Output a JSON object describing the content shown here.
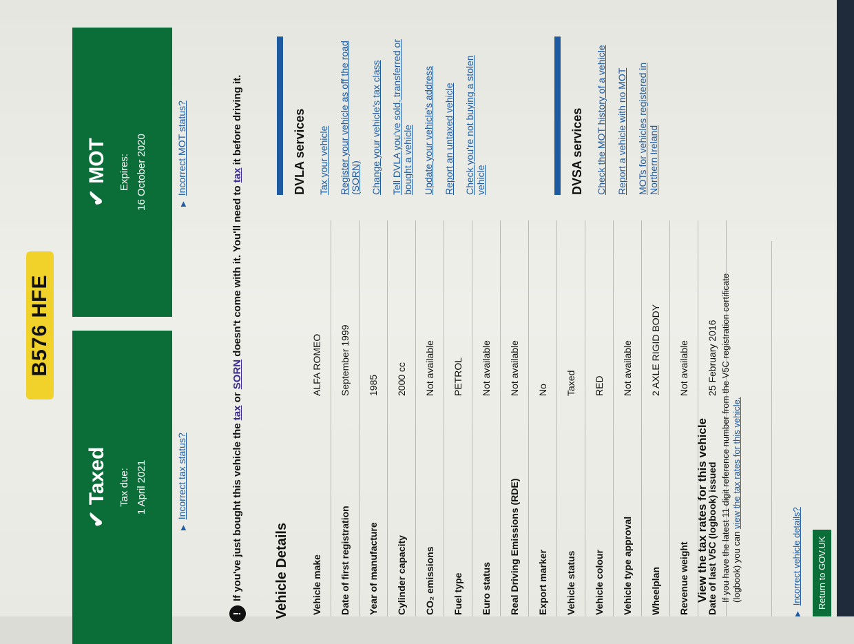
{
  "registration": "B576 HFE",
  "tax": {
    "status": "Taxed",
    "label": "Tax due:",
    "date": "1 April 2021",
    "incorrect_link": "Incorrect tax status?"
  },
  "mot": {
    "status": "MOT",
    "label": "Expires:",
    "date": "16 October 2020",
    "incorrect_link": "Incorrect MOT status?"
  },
  "warning": {
    "pre": "If you've just bought this vehicle the ",
    "tax": "tax",
    "or": " or ",
    "sorn": "SORN",
    "mid": " doesn't come with it. You'll need to ",
    "tax2": "tax",
    "post": " it before driving it."
  },
  "details": {
    "title": "Vehicle Details",
    "rows": [
      {
        "label": "Vehicle make",
        "value": "ALFA ROMEO"
      },
      {
        "label": "Date of first registration",
        "value": "September 1999"
      },
      {
        "label": "Year of manufacture",
        "value": "1985"
      },
      {
        "label": "Cylinder capacity",
        "value": "2000 cc"
      },
      {
        "label": "CO₂ emissions",
        "value": "Not available"
      },
      {
        "label": "Fuel type",
        "value": "PETROL"
      },
      {
        "label": "Euro status",
        "value": "Not available"
      },
      {
        "label": "Real Driving Emissions (RDE)",
        "value": "Not available"
      },
      {
        "label": "Export marker",
        "value": "No"
      },
      {
        "label": "Vehicle status",
        "value": "Taxed"
      },
      {
        "label": "Vehicle colour",
        "value": "RED"
      },
      {
        "label": "Vehicle type approval",
        "value": "Not available"
      },
      {
        "label": "Wheelplan",
        "value": "2 AXLE RIGID BODY"
      },
      {
        "label": "Revenue weight",
        "value": "Not available"
      },
      {
        "label": "Date of last V5C (logbook) issued",
        "value": "25 February 2016"
      }
    ]
  },
  "tax_rates": {
    "title": "View the tax rates for this vehicle",
    "text": "If you have the latest 11 digit reference number from the V5C registration certificate (logbook) you can ",
    "link": "view the tax rates for this vehicle."
  },
  "incorrect_details_link": "Incorrect vehicle details?",
  "return_button": "Return to GOV.UK",
  "dvla": {
    "title": "DVLA services",
    "links": [
      "Tax your vehicle",
      "Register your vehicle as off the road (SORN)",
      "Change your vehicle's tax class",
      "Tell DVLA you've sold, transferred or bought a vehicle",
      "Update your vehicle's address",
      "Report an untaxed vehicle",
      "Check you're not buying a stolen vehicle"
    ]
  },
  "dvsa": {
    "title": "DVSA services",
    "links": [
      "Check the MOT history of a vehicle",
      "Report a vehicle with no MOT",
      "MOTs for vehicles registered in Northern Ireland"
    ]
  },
  "colors": {
    "green": "#0b6e38",
    "plate": "#f1d22a",
    "link": "#1d5aa0"
  }
}
